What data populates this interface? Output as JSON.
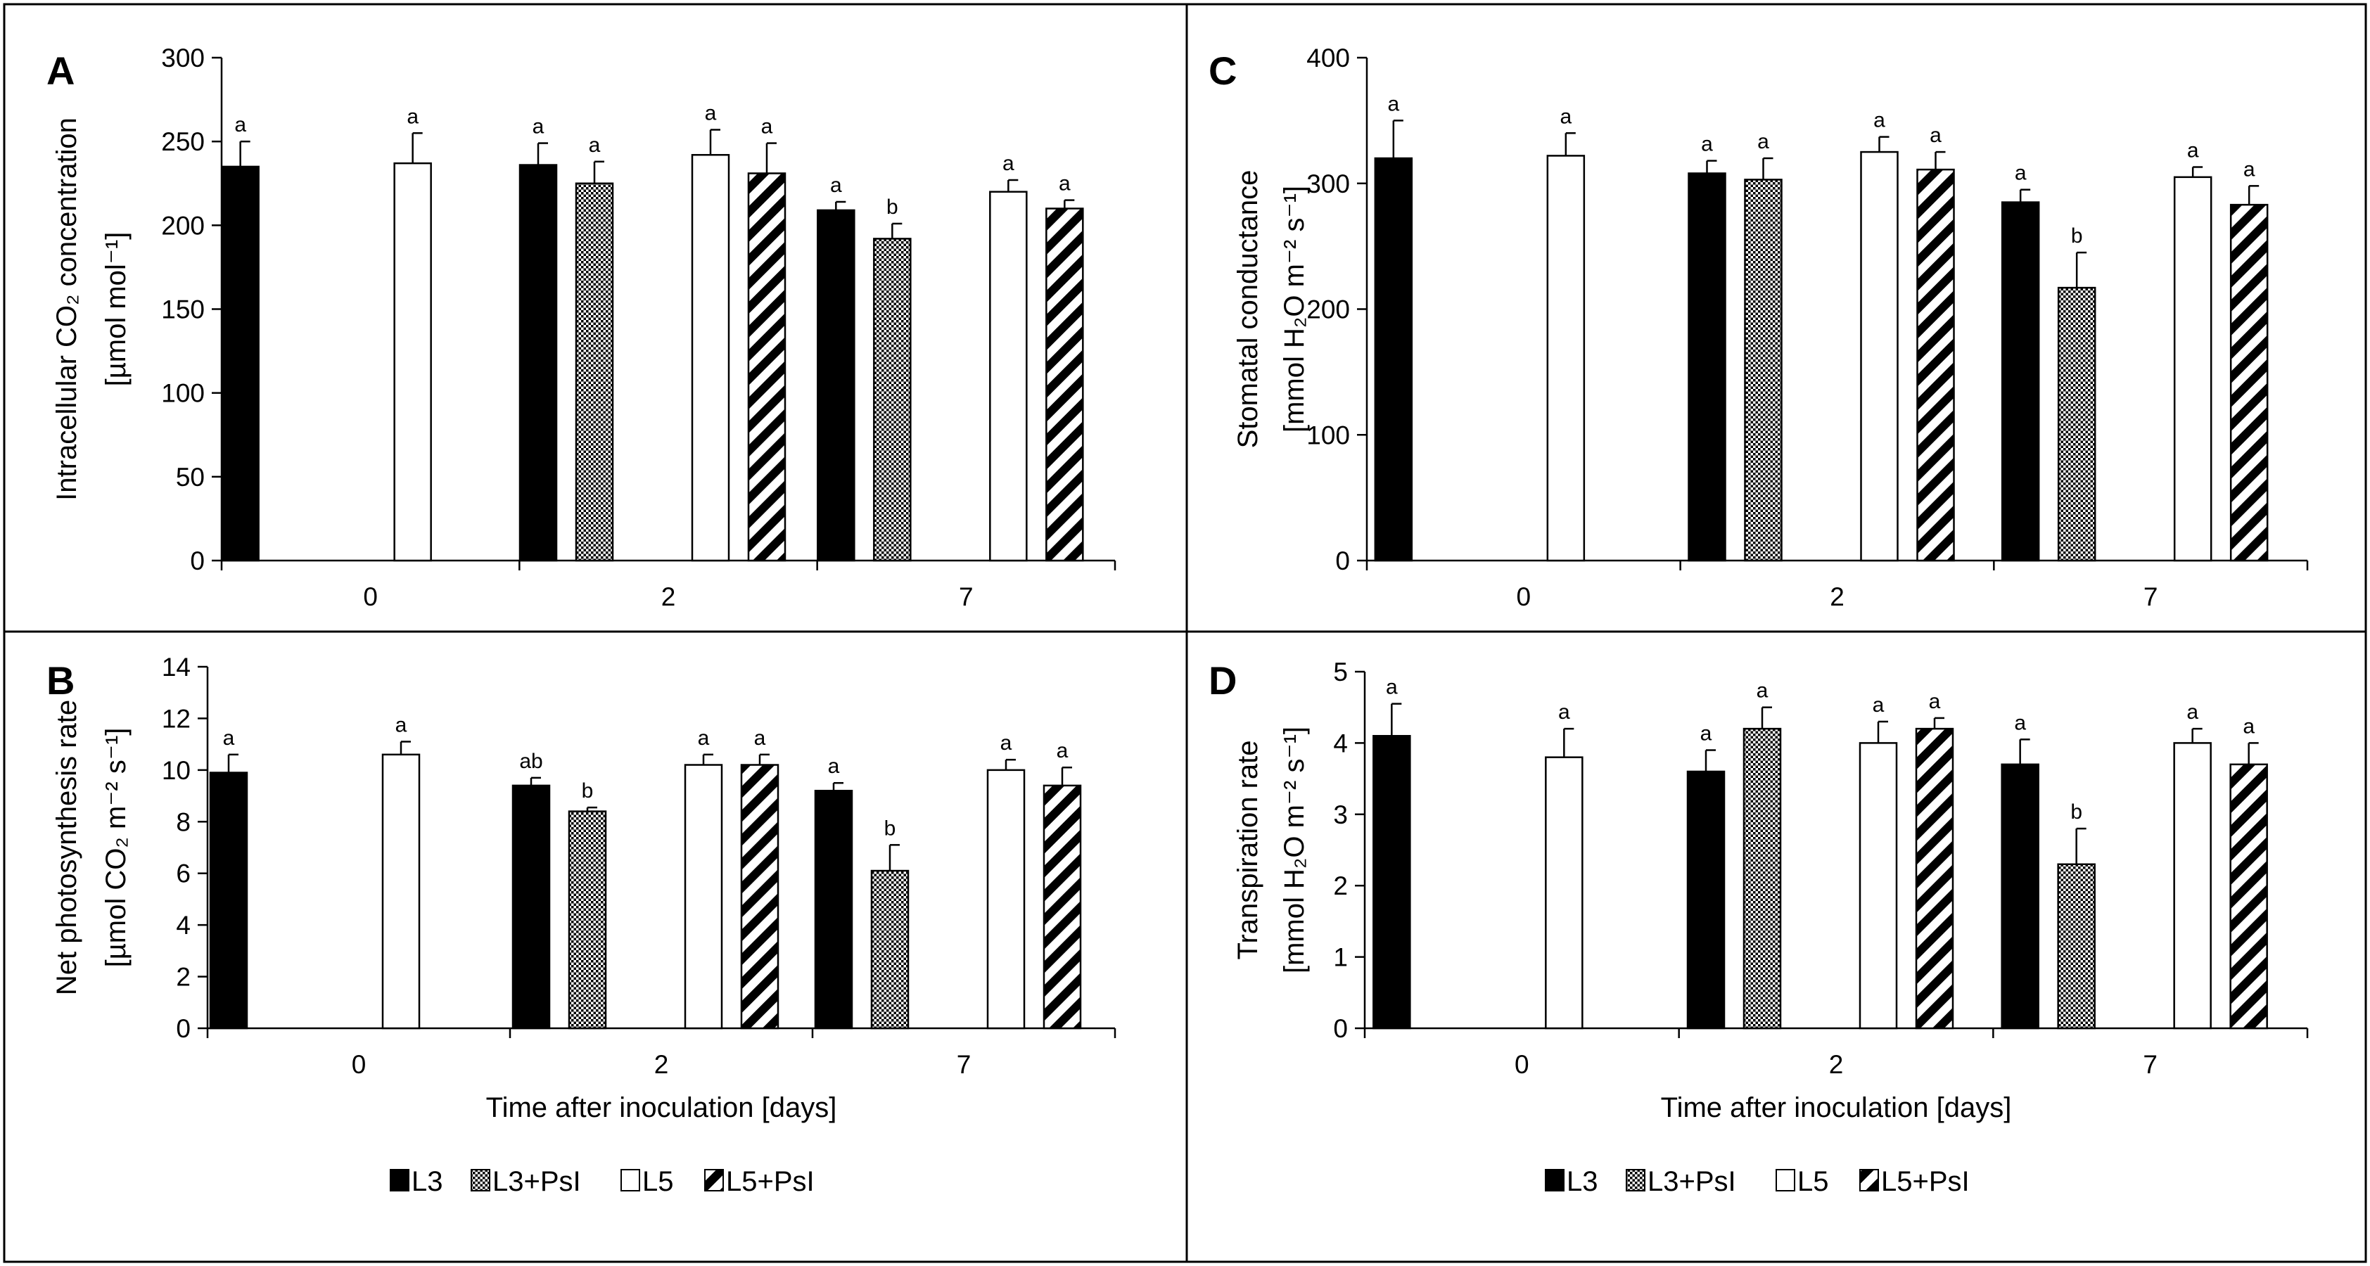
{
  "chart_data": [
    {
      "panel": "A",
      "type": "bar",
      "ylabel_line1": "Intracellular CO₂ concentration",
      "ylabel_line2": "[µmol mol⁻¹]",
      "xlabel": "",
      "ylim": [
        0,
        300
      ],
      "yticks": [
        0,
        50,
        100,
        150,
        200,
        250,
        300
      ],
      "categories": [
        "0",
        "2",
        "7"
      ],
      "series": [
        {
          "name": "L3",
          "values": [
            235,
            236,
            209
          ],
          "errors": [
            15,
            13,
            5
          ],
          "labels": [
            "a",
            "a",
            "a"
          ]
        },
        {
          "name": "L3+PsI",
          "values": [
            null,
            225,
            192
          ],
          "errors": [
            null,
            13,
            9
          ],
          "labels": [
            "",
            "a",
            "b"
          ]
        },
        {
          "name": "L5",
          "values": [
            237,
            242,
            220
          ],
          "errors": [
            18,
            15,
            7
          ],
          "labels": [
            "a",
            "a",
            "a"
          ]
        },
        {
          "name": "L5+PsI",
          "values": [
            null,
            231,
            210
          ],
          "errors": [
            null,
            18,
            5
          ],
          "labels": [
            "",
            "a",
            "a"
          ]
        }
      ]
    },
    {
      "panel": "B",
      "type": "bar",
      "ylabel_line1": "Net photosynthesis rate",
      "ylabel_line2": "[µmol CO₂ m⁻² s⁻¹]",
      "xlabel": "Time after inoculation [days]",
      "ylim": [
        0,
        14
      ],
      "yticks": [
        0,
        2,
        4,
        6,
        8,
        10,
        12,
        14
      ],
      "categories": [
        "0",
        "2",
        "7"
      ],
      "series": [
        {
          "name": "L3",
          "values": [
            9.9,
            9.4,
            9.2
          ],
          "errors": [
            0.7,
            0.3,
            0.3
          ],
          "labels": [
            "a",
            "ab",
            "a"
          ]
        },
        {
          "name": "L3+PsI",
          "values": [
            null,
            8.4,
            6.1
          ],
          "errors": [
            null,
            0.15,
            1.0
          ],
          "labels": [
            "",
            "b",
            "b"
          ]
        },
        {
          "name": "L5",
          "values": [
            10.6,
            10.2,
            10.0
          ],
          "errors": [
            0.5,
            0.4,
            0.4
          ],
          "labels": [
            "a",
            "a",
            "a"
          ]
        },
        {
          "name": "L5+PsI",
          "values": [
            null,
            10.2,
            9.4
          ],
          "errors": [
            null,
            0.4,
            0.7
          ],
          "labels": [
            "",
            "a",
            "a"
          ]
        }
      ]
    },
    {
      "panel": "C",
      "type": "bar",
      "ylabel_line1": "Stomatal conductance",
      "ylabel_line2": "[mmol H₂O m⁻² s⁻¹]",
      "xlabel": "",
      "ylim": [
        0,
        400
      ],
      "yticks": [
        0,
        100,
        200,
        300,
        400
      ],
      "categories": [
        "0",
        "2",
        "7"
      ],
      "series": [
        {
          "name": "L3",
          "values": [
            320,
            308,
            285
          ],
          "errors": [
            30,
            10,
            10
          ],
          "labels": [
            "a",
            "a",
            "a"
          ]
        },
        {
          "name": "L3+PsI",
          "values": [
            null,
            303,
            217
          ],
          "errors": [
            null,
            17,
            28
          ],
          "labels": [
            "",
            "a",
            "b"
          ]
        },
        {
          "name": "L5",
          "values": [
            322,
            325,
            305
          ],
          "errors": [
            18,
            12,
            8
          ],
          "labels": [
            "a",
            "a",
            "a"
          ]
        },
        {
          "name": "L5+PsI",
          "values": [
            null,
            311,
            283
          ],
          "errors": [
            null,
            14,
            15
          ],
          "labels": [
            "",
            "a",
            "a"
          ]
        }
      ]
    },
    {
      "panel": "D",
      "type": "bar",
      "ylabel_line1": "Transpiration rate",
      "ylabel_line2": "[mmol H₂O m⁻² s⁻¹]",
      "xlabel": "Time after inoculation [days]",
      "ylim": [
        0,
        5
      ],
      "yticks": [
        0,
        1,
        2,
        3,
        4,
        5
      ],
      "categories": [
        "0",
        "2",
        "7"
      ],
      "series": [
        {
          "name": "L3",
          "values": [
            4.1,
            3.6,
            3.7
          ],
          "errors": [
            0.45,
            0.3,
            0.35
          ],
          "labels": [
            "a",
            "a",
            "a"
          ]
        },
        {
          "name": "L3+PsI",
          "values": [
            null,
            4.2,
            2.3
          ],
          "errors": [
            null,
            0.3,
            0.5
          ],
          "labels": [
            "",
            "a",
            "b"
          ]
        },
        {
          "name": "L5",
          "values": [
            3.8,
            4.0,
            4.0
          ],
          "errors": [
            0.4,
            0.3,
            0.2
          ],
          "labels": [
            "a",
            "a",
            "a"
          ]
        },
        {
          "name": "L5+PsI",
          "values": [
            null,
            4.2,
            3.7
          ],
          "errors": [
            null,
            0.15,
            0.3
          ],
          "labels": [
            "",
            "a",
            "a"
          ]
        }
      ]
    }
  ],
  "legend": {
    "left": [
      "L3",
      "L3+PsI",
      "L5",
      "L5+PsI"
    ],
    "right": [
      "L3",
      "L3+PsI",
      "L5",
      "L5+PsI"
    ]
  }
}
